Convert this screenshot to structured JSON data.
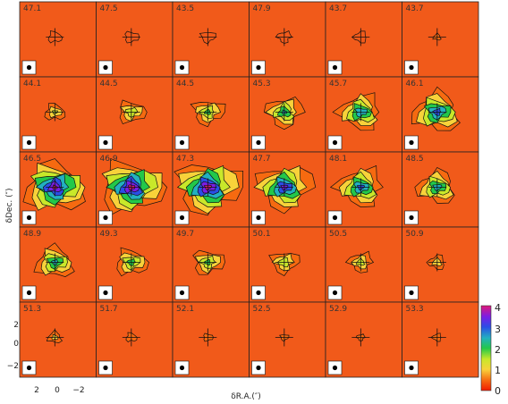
{
  "chart_data": {
    "type": "heatmap",
    "title": "",
    "xlabel": "δR.A.(″)",
    "ylabel": "δDec. (″)",
    "panel_layout": {
      "rows": 5,
      "cols": 6
    },
    "channels": [
      "47.1",
      "47.5",
      "43.5",
      "47.9",
      "43.7",
      "43.7",
      "44.1",
      "44.5",
      "44.5",
      "45.3",
      "45.7",
      "46.1",
      "46.5",
      "46.9",
      "47.3",
      "47.7",
      "48.1",
      "48.5",
      "48.9",
      "49.3",
      "49.7",
      "50.1",
      "50.5",
      "50.9",
      "51.3",
      "51.7",
      "52.1",
      "52.5",
      "52.9",
      "53.3"
    ],
    "x_ticks": [
      "2",
      "0",
      "−2"
    ],
    "y_ticks": [
      "2",
      "0",
      "−2"
    ],
    "xlim": [
      4,
      -4
    ],
    "ylim": [
      -4,
      4
    ],
    "colorbar": {
      "ticks": [
        "0",
        "1",
        "2",
        "3",
        "4"
      ],
      "range": [
        0,
        4
      ]
    },
    "colormap": [
      "#f11a00",
      "#f66a10",
      "#f8d23a",
      "#c8e82a",
      "#22c84a",
      "#22b0c0",
      "#2a4ee6",
      "#7a1ee6",
      "#e01878"
    ],
    "background_color": "#f15a1a",
    "peak_emission": [
      0,
      0,
      0,
      0,
      0,
      0.4,
      1.2,
      1.6,
      1.8,
      2.2,
      2.6,
      2.9,
      3.7,
      3.8,
      3.8,
      3.3,
      2.8,
      2.4,
      2.3,
      1.9,
      1.8,
      1.6,
      1.4,
      1.0,
      0.8,
      0.6,
      0.5,
      0.4,
      0.4,
      0.5
    ]
  }
}
